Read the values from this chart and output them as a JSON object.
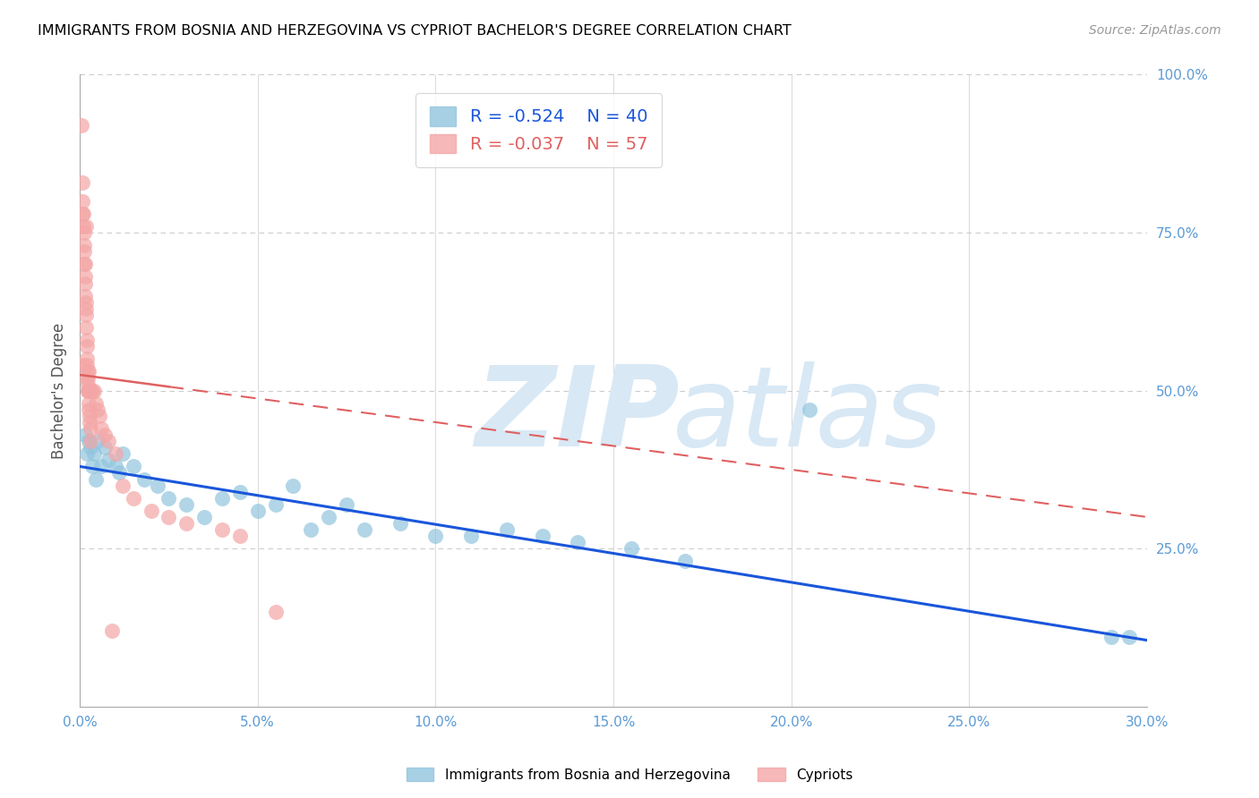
{
  "title": "IMMIGRANTS FROM BOSNIA AND HERZEGOVINA VS CYPRIOT BACHELOR'S DEGREE CORRELATION CHART",
  "source": "Source: ZipAtlas.com",
  "ylabel": "Bachelor's Degree",
  "xlabel_ticks": [
    "0.0%",
    "5.0%",
    "10.0%",
    "15.0%",
    "20.0%",
    "25.0%",
    "30.0%"
  ],
  "xlabel_vals": [
    0.0,
    5.0,
    10.0,
    15.0,
    20.0,
    25.0,
    30.0
  ],
  "ylabel_ticks_right": [
    "100.0%",
    "75.0%",
    "50.0%",
    "25.0%"
  ],
  "ylabel_vals_right": [
    100.0,
    75.0,
    50.0,
    25.0
  ],
  "xmin": 0.0,
  "xmax": 30.0,
  "ymin": 0.0,
  "ymax": 100.0,
  "legend_blue_label": "Immigrants from Bosnia and Herzegovina",
  "legend_pink_label": "Cypriots",
  "legend_blue_R": "-0.524",
  "legend_blue_N": "40",
  "legend_pink_R": "-0.037",
  "legend_pink_N": "57",
  "blue_scatter_x": [
    0.15,
    0.2,
    0.25,
    0.3,
    0.35,
    0.4,
    0.5,
    0.6,
    0.7,
    0.8,
    1.0,
    1.1,
    1.2,
    1.5,
    1.8,
    2.2,
    2.5,
    3.0,
    3.5,
    4.0,
    4.5,
    5.0,
    5.5,
    6.0,
    6.5,
    7.0,
    7.5,
    8.0,
    9.0,
    10.0,
    11.0,
    12.0,
    13.0,
    14.0,
    15.5,
    17.0,
    20.5,
    29.0,
    29.5,
    0.45
  ],
  "blue_scatter_y": [
    43,
    40,
    42,
    41,
    38,
    40,
    42,
    38,
    41,
    39,
    38,
    37,
    40,
    38,
    36,
    35,
    33,
    32,
    30,
    33,
    34,
    31,
    32,
    35,
    28,
    30,
    32,
    28,
    29,
    27,
    27,
    28,
    27,
    26,
    25,
    23,
    47,
    11,
    11,
    36
  ],
  "pink_scatter_x": [
    0.05,
    0.07,
    0.08,
    0.08,
    0.1,
    0.1,
    0.12,
    0.12,
    0.13,
    0.13,
    0.15,
    0.15,
    0.16,
    0.16,
    0.17,
    0.17,
    0.18,
    0.18,
    0.19,
    0.2,
    0.2,
    0.21,
    0.21,
    0.22,
    0.22,
    0.23,
    0.23,
    0.24,
    0.25,
    0.25,
    0.26,
    0.27,
    0.28,
    0.3,
    0.3,
    0.32,
    0.35,
    0.4,
    0.45,
    0.5,
    0.55,
    0.6,
    0.7,
    0.8,
    1.0,
    1.2,
    1.5,
    2.0,
    2.5,
    3.0,
    4.0,
    4.5,
    5.5,
    0.9,
    0.22,
    0.18,
    0.13
  ],
  "pink_scatter_y": [
    92,
    83,
    80,
    78,
    78,
    76,
    75,
    73,
    72,
    70,
    70,
    68,
    67,
    65,
    64,
    63,
    62,
    60,
    58,
    57,
    55,
    54,
    52,
    51,
    50,
    50,
    52,
    53,
    50,
    48,
    47,
    46,
    45,
    44,
    42,
    50,
    50,
    50,
    48,
    47,
    46,
    44,
    43,
    42,
    40,
    35,
    33,
    31,
    30,
    29,
    28,
    27,
    15,
    12,
    53,
    76,
    54
  ],
  "blue_line_x0": 0.0,
  "blue_line_y0": 38.0,
  "blue_line_x1": 30.0,
  "blue_line_y1": 10.5,
  "pink_line_x0": 0.0,
  "pink_line_y0": 52.5,
  "pink_line_x1": 30.0,
  "pink_line_y1": 30.0,
  "pink_solid_x0": 0.0,
  "pink_solid_x1": 2.5,
  "blue_color": "#92c5de",
  "pink_color": "#f4a6a6",
  "blue_line_color": "#1a56db",
  "pink_line_color": "#e06060",
  "watermark_zip": "ZIP",
  "watermark_atlas": "atlas",
  "watermark_color": "#d8e8f5",
  "grid_color": "#cccccc",
  "axis_label_color": "#5b9bd5",
  "title_color": "#000000",
  "background_color": "#ffffff"
}
